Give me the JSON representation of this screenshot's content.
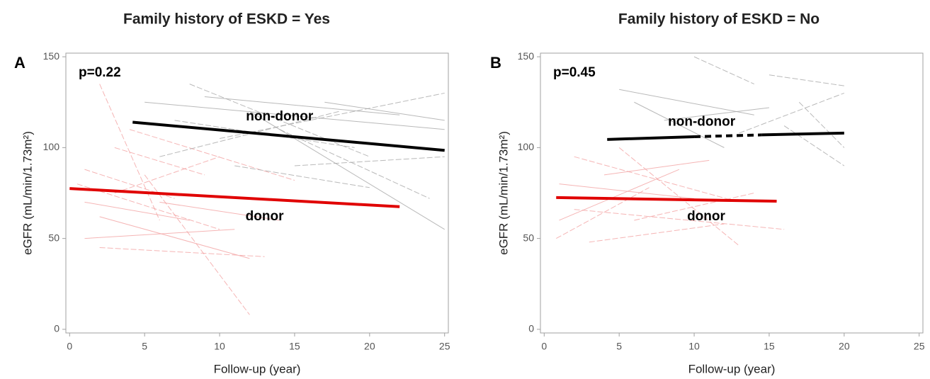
{
  "chart_data": [
    {
      "type": "line",
      "title": "Family history of ESKD = Yes",
      "panel_label": "A",
      "annotation": "p=0.22",
      "x_label": "Follow-up (year)",
      "y_label": "eGFR (mL/min/1.73m²)",
      "xlim": [
        -0.25,
        25.25
      ],
      "ylim": [
        -2,
        152
      ],
      "xticks": [
        0,
        5,
        10,
        15,
        20,
        25
      ],
      "yticks": [
        0,
        50,
        100,
        150
      ],
      "series": [
        {
          "name": "non-donor",
          "color": "#000000",
          "x": [
            4.2,
            25
          ],
          "values": [
            114,
            98.5
          ],
          "dashed_segments": []
        },
        {
          "name": "donor",
          "color": "#e00000",
          "x": [
            0,
            22
          ],
          "values": [
            77.5,
            67.5
          ],
          "dashed_segments": []
        }
      ],
      "individual_lines": [
        {
          "color": "#f3a3a3",
          "x": [
            1,
            8
          ],
          "values": [
            70,
            60
          ]
        },
        {
          "color": "#f3a3a3",
          "x": [
            2,
            6
          ],
          "values": [
            135,
            60
          ]
        },
        {
          "color": "#f3a3a3",
          "x": [
            5,
            12
          ],
          "values": [
            85,
            8
          ]
        },
        {
          "color": "#f3a3a3",
          "x": [
            1,
            11
          ],
          "values": [
            50,
            55
          ]
        },
        {
          "color": "#f3a3a3",
          "x": [
            3,
            9
          ],
          "values": [
            100,
            85
          ]
        },
        {
          "color": "#f3a3a3",
          "x": [
            0.5,
            10
          ],
          "values": [
            80,
            55
          ]
        },
        {
          "color": "#f3a3a3",
          "x": [
            2,
            12
          ],
          "values": [
            62,
            39
          ]
        },
        {
          "color": "#f3a3a3",
          "x": [
            4,
            15
          ],
          "values": [
            110,
            82
          ]
        },
        {
          "color": "#f3a3a3",
          "x": [
            1,
            7
          ],
          "values": [
            88,
            72
          ]
        },
        {
          "color": "#f3a3a3",
          "x": [
            6,
            14
          ],
          "values": [
            70,
            60
          ]
        },
        {
          "color": "#f3a3a3",
          "x": [
            2,
            13
          ],
          "values": [
            45,
            40
          ]
        },
        {
          "color": "#f3a3a3",
          "x": [
            3,
            10
          ],
          "values": [
            75,
            95
          ]
        },
        {
          "color": "#a8a8a8",
          "x": [
            5,
            25
          ],
          "values": [
            125,
            110
          ]
        },
        {
          "color": "#a8a8a8",
          "x": [
            8,
            20
          ],
          "values": [
            135,
            95
          ]
        },
        {
          "color": "#a8a8a8",
          "x": [
            10,
            25
          ],
          "values": [
            105,
            130
          ]
        },
        {
          "color": "#a8a8a8",
          "x": [
            12,
            25
          ],
          "values": [
            120,
            55
          ]
        },
        {
          "color": "#a8a8a8",
          "x": [
            6,
            18
          ],
          "values": [
            95,
            120
          ]
        },
        {
          "color": "#a8a8a8",
          "x": [
            15,
            25
          ],
          "values": [
            90,
            95
          ]
        },
        {
          "color": "#a8a8a8",
          "x": [
            9,
            22
          ],
          "values": [
            128,
            118
          ]
        },
        {
          "color": "#a8a8a8",
          "x": [
            14,
            24
          ],
          "values": [
            110,
            72
          ]
        },
        {
          "color": "#a8a8a8",
          "x": [
            7,
            19
          ],
          "values": [
            115,
            100
          ]
        },
        {
          "color": "#a8a8a8",
          "x": [
            17,
            25
          ],
          "values": [
            125,
            115
          ]
        },
        {
          "color": "#a8a8a8",
          "x": [
            11,
            20
          ],
          "values": [
            90,
            78
          ]
        }
      ]
    },
    {
      "type": "line",
      "title": "Family history of ESKD = No",
      "panel_label": "B",
      "annotation": "p=0.45",
      "x_label": "Follow-up (year)",
      "y_label": "eGFR (mL/min/1.73m²)",
      "xlim": [
        -0.25,
        25.25
      ],
      "ylim": [
        -2,
        152
      ],
      "xticks": [
        0,
        5,
        10,
        15,
        20,
        25
      ],
      "yticks": [
        0,
        50,
        100,
        150
      ],
      "series": [
        {
          "name": "non-donor",
          "color": "#000000",
          "x": [
            4.2,
            10,
            14.5,
            20
          ],
          "values": [
            104.5,
            106,
            107,
            108
          ],
          "dashed_segments": [
            1
          ]
        },
        {
          "name": "donor",
          "color": "#e00000",
          "x": [
            0.8,
            15.5
          ],
          "values": [
            72.5,
            70.5
          ],
          "dashed_segments": []
        }
      ],
      "individual_lines": [
        {
          "color": "#f3a3a3",
          "x": [
            1,
            9
          ],
          "values": [
            60,
            88
          ]
        },
        {
          "color": "#f3a3a3",
          "x": [
            2,
            13
          ],
          "values": [
            95,
            70
          ]
        },
        {
          "color": "#f3a3a3",
          "x": [
            3,
            12
          ],
          "values": [
            48,
            58
          ]
        },
        {
          "color": "#f3a3a3",
          "x": [
            1,
            10
          ],
          "values": [
            80,
            72
          ]
        },
        {
          "color": "#f3a3a3",
          "x": [
            5,
            13
          ],
          "values": [
            100,
            46
          ]
        },
        {
          "color": "#f3a3a3",
          "x": [
            2,
            16
          ],
          "values": [
            66,
            55
          ]
        },
        {
          "color": "#f3a3a3",
          "x": [
            4,
            11
          ],
          "values": [
            85,
            93
          ]
        },
        {
          "color": "#f3a3a3",
          "x": [
            6,
            14
          ],
          "values": [
            60,
            75
          ]
        },
        {
          "color": "#f3a3a3",
          "x": [
            0.8,
            7
          ],
          "values": [
            50,
            78
          ]
        },
        {
          "color": "#a8a8a8",
          "x": [
            5,
            14
          ],
          "values": [
            132,
            118
          ]
        },
        {
          "color": "#a8a8a8",
          "x": [
            10,
            14
          ],
          "values": [
            150,
            135
          ]
        },
        {
          "color": "#a8a8a8",
          "x": [
            15,
            20
          ],
          "values": [
            140,
            134
          ]
        },
        {
          "color": "#a8a8a8",
          "x": [
            6,
            12
          ],
          "values": [
            125,
            100
          ]
        },
        {
          "color": "#a8a8a8",
          "x": [
            16,
            20
          ],
          "values": [
            112,
            90
          ]
        },
        {
          "color": "#a8a8a8",
          "x": [
            13,
            20
          ],
          "values": [
            108,
            130
          ]
        },
        {
          "color": "#a8a8a8",
          "x": [
            8,
            15
          ],
          "values": [
            115,
            122
          ]
        },
        {
          "color": "#a8a8a8",
          "x": [
            17,
            20
          ],
          "values": [
            125,
            100
          ]
        }
      ]
    }
  ]
}
